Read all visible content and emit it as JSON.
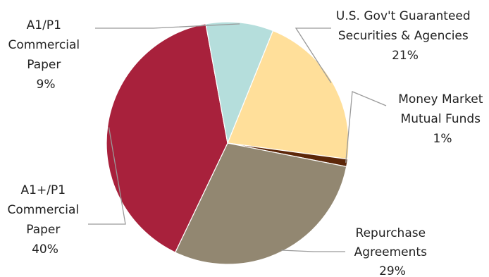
{
  "chart_data": {
    "type": "pie",
    "slices": [
      {
        "label": [
          "U.S. Gov't Guaranteed",
          "Securities & Agencies"
        ],
        "pct": "21%",
        "value": 21,
        "color": "#FFDF9A"
      },
      {
        "label": [
          "Money Market",
          "Mutual Funds"
        ],
        "pct": "1%",
        "value": 1,
        "color": "#5C2709"
      },
      {
        "label": [
          "Repurchase",
          "Agreements"
        ],
        "pct": "29%",
        "value": 29,
        "color": "#928771"
      },
      {
        "label": [
          "A1+/P1",
          "Commercial",
          "Paper"
        ],
        "pct": "40%",
        "value": 40,
        "color": "#A8213C"
      },
      {
        "label": [
          "A1/P1",
          "Commercial",
          "Paper"
        ],
        "pct": "9%",
        "value": 9,
        "color": "#B5DEDC"
      }
    ],
    "start_angle_deg": 22,
    "slice_border_color": "#ffffff",
    "leader_color": "#9a9a9a"
  }
}
